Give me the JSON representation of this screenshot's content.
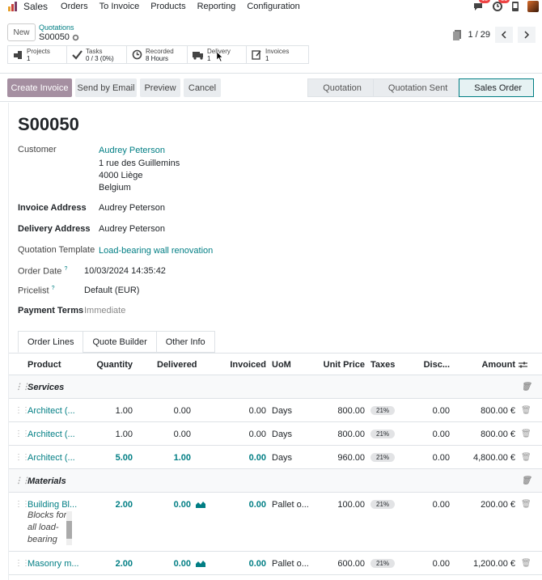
{
  "topbar": {
    "brand": "Sales",
    "menu": [
      "Orders",
      "To Invoice",
      "Products",
      "Reporting",
      "Configuration"
    ],
    "messages_count": "18",
    "activities_count": "31"
  },
  "control": {
    "new_label": "New",
    "breadcrumb": "Quotations",
    "record": "S00050",
    "pager_value": "1 / 29"
  },
  "smart_buttons": [
    {
      "label": "Projects",
      "value": "1"
    },
    {
      "label": "Tasks",
      "value": "0 / 3 (0%)"
    },
    {
      "label": "Recorded",
      "value": "8 Hours"
    },
    {
      "label": "Delivery",
      "value": "1"
    },
    {
      "label": "Invoices",
      "value": "1"
    }
  ],
  "actions": {
    "create_invoice": "Create Invoice",
    "send_email": "Send by Email",
    "preview": "Preview",
    "cancel": "Cancel"
  },
  "stages": [
    "Quotation",
    "Quotation Sent",
    "Sales Order"
  ],
  "form": {
    "title": "S00050",
    "customer_label": "Customer",
    "customer_name": "Audrey Peterson",
    "address1": "1 rue des Guillemins",
    "address2": "4000 Liège",
    "address3": "Belgium",
    "invoice_address_label": "Invoice Address",
    "invoice_address": "Audrey Peterson",
    "delivery_address_label": "Delivery Address",
    "delivery_address": "Audrey Peterson",
    "quotation_template_label": "Quotation Template",
    "quotation_template": "Load-bearing wall renovation",
    "order_date_label": "Order Date",
    "order_date": "10/03/2024 14:35:42",
    "pricelist_label": "Pricelist",
    "pricelist": "Default (EUR)",
    "payment_terms_label": "Payment Terms",
    "payment_terms_placeholder": "Immediate"
  },
  "tabs": [
    "Order Lines",
    "Quote Builder",
    "Other Info"
  ],
  "lines": {
    "headers": [
      "Product",
      "Quantity",
      "Delivered",
      "Invoiced",
      "UoM",
      "Unit Price",
      "Taxes",
      "Disc...",
      "Amount"
    ],
    "sections": {
      "services": "Services",
      "materials": "Materials"
    },
    "rows": [
      {
        "product": "Architect (...",
        "qty": "1.00",
        "delivered": "0.00",
        "invoiced": "0.00",
        "uom": "Days",
        "price": "800.00",
        "tax": "21%",
        "disc": "0.00",
        "amount": "800.00 €"
      },
      {
        "product": "Architect (...",
        "qty": "1.00",
        "delivered": "0.00",
        "invoiced": "0.00",
        "uom": "Days",
        "price": "800.00",
        "tax": "21%",
        "disc": "0.00",
        "amount": "800.00 €"
      },
      {
        "product": "Architect (...",
        "qty": "5.00",
        "delivered": "1.00",
        "invoiced": "0.00",
        "uom": "Days",
        "price": "960.00",
        "tax": "21%",
        "disc": "0.00",
        "amount": "4,800.00 €"
      },
      {
        "product": "Building Bl...",
        "qty": "2.00",
        "delivered": "0.00",
        "invoiced": "0.00",
        "uom": "Pallet o...",
        "price": "100.00",
        "tax": "21%",
        "disc": "0.00",
        "amount": "200.00 €",
        "desc1": "Blocks for",
        "desc2": "all load-",
        "desc3": "bearing"
      },
      {
        "product": "Masonry m...",
        "qty": "2.00",
        "delivered": "0.00",
        "invoiced": "0.00",
        "uom": "Pallet o...",
        "price": "600.00",
        "tax": "21%",
        "disc": "0.00",
        "amount": "1,200.00 €"
      }
    ]
  },
  "colors": {
    "accent": "#017e84",
    "primary": "#714b67"
  }
}
